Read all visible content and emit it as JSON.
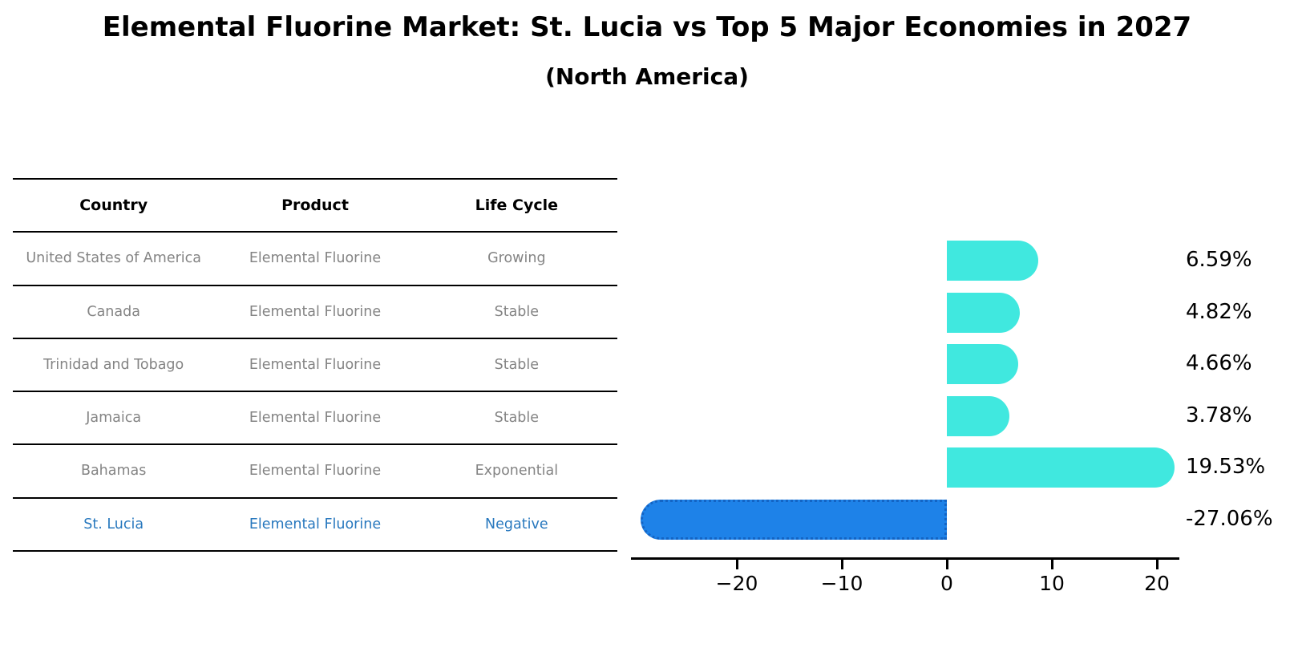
{
  "table": {
    "headers": [
      "Country",
      "Product",
      "Life Cycle"
    ],
    "rows": [
      {
        "country": "United States of America",
        "product": "Elemental Fluorine",
        "life_cycle": "Growing",
        "highlighted": false
      },
      {
        "country": "Canada",
        "product": "Elemental Fluorine",
        "life_cycle": "Stable",
        "highlighted": false
      },
      {
        "country": "Trinidad and Tobago",
        "product": "Elemental Fluorine",
        "life_cycle": "Stable",
        "highlighted": false
      },
      {
        "country": "Jamaica",
        "product": "Elemental Fluorine",
        "life_cycle": "Stable",
        "highlighted": false
      },
      {
        "country": "Bahamas",
        "product": "Elemental Fluorine",
        "life_cycle": "Exponential",
        "highlighted": false
      },
      {
        "country": "St. Lucia",
        "product": "Elemental Fluorine",
        "life_cycle": "Negative",
        "highlighted": true
      }
    ]
  },
  "chart_data": {
    "type": "bar",
    "orientation": "horizontal",
    "title": "Elemental Fluorine Market: St. Lucia vs Top 5 Major Economies in 2027",
    "subtitle": "(North America)",
    "categories": [
      "United States of America",
      "Canada",
      "Trinidad and Tobago",
      "Jamaica",
      "Bahamas",
      "St. Lucia"
    ],
    "values": [
      6.59,
      4.82,
      4.66,
      3.78,
      19.53,
      -27.06
    ],
    "value_labels": [
      "6.59%",
      "4.82%",
      "4.66%",
      "3.78%",
      "19.53%",
      "-27.06%"
    ],
    "xlabel": "",
    "ylabel": "",
    "xlim": [
      -30,
      22
    ],
    "xticks": [
      -20,
      -10,
      0,
      10,
      20
    ],
    "xtick_labels": [
      "−20",
      "−10",
      "0",
      "10",
      "20"
    ],
    "grid": false,
    "legend": false,
    "highlight_category": "St. Lucia"
  },
  "colors": {
    "bar_positive": "#40E8DF",
    "bar_negative": "#1E82E8",
    "bar_negative_border": "#1364C4",
    "highlight_text": "#2878BE",
    "row_text": "#848484",
    "header_text": "#000000",
    "axis": "#000000"
  }
}
